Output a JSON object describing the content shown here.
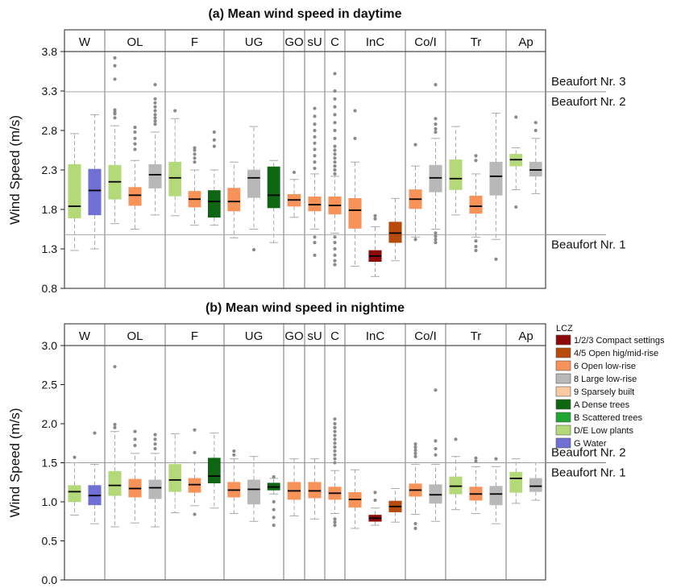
{
  "chart_data": [
    {
      "type": "boxplot",
      "title": "(a) Mean wind speed in daytime",
      "ylabel": "Wind Speed (m/s)",
      "ylim": [
        0.8,
        3.8
      ],
      "yticks": [
        "0.8",
        "1.3",
        "1.8",
        "2.3",
        "2.8",
        "3.3",
        "3.8"
      ],
      "grid": false,
      "groups": [
        "W",
        "OL",
        "F",
        "UG",
        "GO",
        "sU",
        "C",
        "InC",
        "Co/I",
        "Tr",
        "Ap"
      ],
      "reference_lines": [
        {
          "value": 1.48,
          "labels": [
            "Beaufort Nr. 1"
          ]
        },
        {
          "value": 3.29,
          "labels": [
            "Beaufort Nr. 3",
            "Beaufort Nr. 2"
          ]
        }
      ],
      "boxes": [
        {
          "group": "W",
          "lcz": "D/E",
          "min": 1.28,
          "q1": 1.69,
          "median": 1.84,
          "q3": 2.37,
          "max": 2.76,
          "outliers": []
        },
        {
          "group": "W",
          "lcz": "G",
          "min": 1.3,
          "q1": 1.73,
          "median": 2.04,
          "q3": 2.31,
          "max": 3.0,
          "outliers": []
        },
        {
          "group": "OL",
          "lcz": "D/E",
          "min": 1.62,
          "q1": 1.93,
          "median": 2.15,
          "q3": 2.36,
          "max": 2.86,
          "outliers": [
            3.06,
            3.03,
            3.01,
            2.96,
            3.45,
            3.62,
            3.72
          ]
        },
        {
          "group": "OL",
          "lcz": "6",
          "min": 1.55,
          "q1": 1.85,
          "median": 1.98,
          "q3": 2.08,
          "max": 2.42,
          "outliers": [
            2.56,
            2.63,
            2.7,
            2.78,
            2.84
          ]
        },
        {
          "group": "OL",
          "lcz": "8",
          "min": 1.73,
          "q1": 2.07,
          "median": 2.24,
          "q3": 2.37,
          "max": 2.78,
          "outliers": [
            2.88,
            2.92,
            2.96,
            3.0,
            3.05,
            3.1,
            3.15,
            3.2,
            3.38
          ]
        },
        {
          "group": "F",
          "lcz": "D/E",
          "min": 1.72,
          "q1": 1.97,
          "median": 2.2,
          "q3": 2.4,
          "max": 2.95,
          "outliers": [
            3.05
          ]
        },
        {
          "group": "F",
          "lcz": "6",
          "min": 1.6,
          "q1": 1.83,
          "median": 1.93,
          "q3": 2.03,
          "max": 2.3,
          "outliers": [
            2.4,
            2.45,
            2.5,
            2.55,
            2.58
          ]
        },
        {
          "group": "F",
          "lcz": "A",
          "min": 1.6,
          "q1": 1.7,
          "median": 1.9,
          "q3": 2.04,
          "max": 2.3,
          "outliers": [
            2.6,
            2.68,
            2.78
          ]
        },
        {
          "group": "UG",
          "lcz": "6",
          "min": 1.44,
          "q1": 1.78,
          "median": 1.9,
          "q3": 2.07,
          "max": 2.4,
          "outliers": []
        },
        {
          "group": "UG",
          "lcz": "8",
          "min": 1.55,
          "q1": 1.95,
          "median": 2.2,
          "q3": 2.3,
          "max": 2.85,
          "outliers": [
            1.29
          ]
        },
        {
          "group": "UG",
          "lcz": "A",
          "min": 1.38,
          "q1": 1.82,
          "median": 1.98,
          "q3": 2.34,
          "max": 2.42,
          "outliers": []
        },
        {
          "group": "GO",
          "lcz": "6",
          "min": 1.7,
          "q1": 1.84,
          "median": 1.92,
          "q3": 1.99,
          "max": 2.18,
          "outliers": [
            2.27
          ]
        },
        {
          "group": "sU",
          "lcz": "6",
          "min": 1.55,
          "q1": 1.78,
          "median": 1.86,
          "q3": 1.96,
          "max": 2.25,
          "outliers": [
            2.32,
            2.4,
            2.48,
            2.56,
            2.64,
            2.72,
            2.8,
            2.88,
            2.98,
            3.08,
            1.45,
            1.38,
            1.22
          ]
        },
        {
          "group": "C",
          "lcz": "6",
          "min": 1.5,
          "q1": 1.74,
          "median": 1.85,
          "q3": 1.96,
          "max": 2.22,
          "outliers": [
            2.25,
            2.3,
            2.35,
            2.4,
            2.45,
            2.5,
            2.55,
            2.6,
            2.7,
            2.8,
            2.9,
            3.0,
            3.1,
            3.2,
            3.3,
            3.52,
            1.45,
            1.38,
            1.3,
            1.22,
            1.15,
            1.1
          ]
        },
        {
          "group": "InC",
          "lcz": "6",
          "min": 1.08,
          "q1": 1.56,
          "median": 1.79,
          "q3": 1.94,
          "max": 2.4,
          "outliers": [
            2.7,
            3.05
          ]
        },
        {
          "group": "InC",
          "lcz": "1/2/3",
          "min": 0.95,
          "q1": 1.14,
          "median": 1.21,
          "q3": 1.28,
          "max": 1.58,
          "outliers": [
            1.68,
            1.72
          ]
        },
        {
          "group": "InC",
          "lcz": "4/5",
          "min": 1.15,
          "q1": 1.38,
          "median": 1.5,
          "q3": 1.64,
          "max": 1.94,
          "outliers": []
        },
        {
          "group": "Co/I",
          "lcz": "6",
          "min": 1.45,
          "q1": 1.81,
          "median": 1.93,
          "q3": 2.05,
          "max": 2.35,
          "outliers": [
            2.62,
            1.42
          ]
        },
        {
          "group": "Co/I",
          "lcz": "8",
          "min": 1.55,
          "q1": 2.02,
          "median": 2.2,
          "q3": 2.36,
          "max": 2.7,
          "outliers": [
            2.78,
            2.82,
            2.88,
            2.95,
            3.38,
            1.5,
            1.46,
            1.42,
            1.38
          ]
        },
        {
          "group": "Tr",
          "lcz": "D/E",
          "min": 1.73,
          "q1": 2.05,
          "median": 2.19,
          "q3": 2.43,
          "max": 2.85,
          "outliers": []
        },
        {
          "group": "Tr",
          "lcz": "6",
          "min": 1.45,
          "q1": 1.75,
          "median": 1.84,
          "q3": 1.97,
          "max": 2.25,
          "outliers": [
            2.42,
            2.48,
            1.4,
            1.33,
            1.28
          ]
        },
        {
          "group": "Tr",
          "lcz": "8",
          "min": 1.42,
          "q1": 1.98,
          "median": 2.22,
          "q3": 2.4,
          "max": 3.02,
          "outliers": [
            1.17
          ]
        },
        {
          "group": "Ap",
          "lcz": "D/E",
          "min": 2.05,
          "q1": 2.35,
          "median": 2.43,
          "q3": 2.5,
          "max": 2.58,
          "outliers": [
            2.97,
            1.83
          ]
        },
        {
          "group": "Ap",
          "lcz": "8",
          "min": 2.0,
          "q1": 2.22,
          "median": 2.3,
          "q3": 2.4,
          "max": 2.7,
          "outliers": [
            2.8,
            2.9
          ]
        }
      ]
    },
    {
      "type": "boxplot",
      "title": "(b) Mean wind speed in nightime",
      "ylabel": "Wind Speed (m/s)",
      "ylim": [
        0.0,
        3.0
      ],
      "yticks": [
        "0.0",
        "0.5",
        "1.0",
        "1.5",
        "2.0",
        "2.5",
        "3.0"
      ],
      "grid": false,
      "groups": [
        "W",
        "OL",
        "F",
        "UG",
        "GO",
        "sU",
        "C",
        "InC",
        "Co/I",
        "Tr",
        "Ap"
      ],
      "reference_lines": [
        {
          "value": 1.5,
          "labels": [
            "Beaufort Nr. 2",
            "Beaufort Nr. 1"
          ]
        }
      ],
      "boxes": [
        {
          "group": "W",
          "lcz": "D/E",
          "min": 0.83,
          "q1": 1.0,
          "median": 1.13,
          "q3": 1.21,
          "max": 1.5,
          "outliers": [
            1.57
          ]
        },
        {
          "group": "W",
          "lcz": "G",
          "min": 0.72,
          "q1": 0.96,
          "median": 1.08,
          "q3": 1.21,
          "max": 1.48,
          "outliers": [
            1.88
          ]
        },
        {
          "group": "OL",
          "lcz": "D/E",
          "min": 0.68,
          "q1": 1.08,
          "median": 1.21,
          "q3": 1.39,
          "max": 1.9,
          "outliers": [
            1.95,
            1.99,
            2.73
          ]
        },
        {
          "group": "OL",
          "lcz": "6",
          "min": 0.73,
          "q1": 1.06,
          "median": 1.17,
          "q3": 1.29,
          "max": 1.62,
          "outliers": [
            1.72,
            1.8,
            1.9
          ]
        },
        {
          "group": "OL",
          "lcz": "8",
          "min": 0.68,
          "q1": 1.04,
          "median": 1.18,
          "q3": 1.28,
          "max": 1.62,
          "outliers": [
            1.68,
            1.74,
            1.8,
            1.86
          ]
        },
        {
          "group": "F",
          "lcz": "D/E",
          "min": 0.86,
          "q1": 1.13,
          "median": 1.28,
          "q3": 1.48,
          "max": 1.87,
          "outliers": []
        },
        {
          "group": "F",
          "lcz": "6",
          "min": 0.95,
          "q1": 1.12,
          "median": 1.22,
          "q3": 1.3,
          "max": 1.5,
          "outliers": [
            1.63,
            1.92,
            0.84
          ]
        },
        {
          "group": "F",
          "lcz": "A",
          "min": 0.92,
          "q1": 1.24,
          "median": 1.33,
          "q3": 1.56,
          "max": 1.88,
          "outliers": []
        },
        {
          "group": "UG",
          "lcz": "6",
          "min": 0.85,
          "q1": 1.06,
          "median": 1.15,
          "q3": 1.25,
          "max": 1.55,
          "outliers": [
            1.6,
            1.65
          ]
        },
        {
          "group": "UG",
          "lcz": "8",
          "min": 0.75,
          "q1": 0.97,
          "median": 1.16,
          "q3": 1.28,
          "max": 1.58,
          "outliers": []
        },
        {
          "group": "UG",
          "lcz": "A",
          "min": 1.1,
          "q1": 1.15,
          "median": 1.19,
          "q3": 1.24,
          "max": 1.3,
          "outliers": [
            1.32,
            1.0,
            0.9,
            0.8,
            0.7
          ]
        },
        {
          "group": "GO",
          "lcz": "6",
          "min": 0.82,
          "q1": 1.03,
          "median": 1.14,
          "q3": 1.25,
          "max": 1.55,
          "outliers": []
        },
        {
          "group": "sU",
          "lcz": "6",
          "min": 0.78,
          "q1": 1.05,
          "median": 1.14,
          "q3": 1.25,
          "max": 1.55,
          "outliers": []
        },
        {
          "group": "C",
          "lcz": "6",
          "min": 0.85,
          "q1": 1.03,
          "median": 1.11,
          "q3": 1.19,
          "max": 1.4,
          "outliers": [
            1.5,
            1.55,
            1.6,
            1.65,
            1.7,
            1.75,
            1.8,
            1.85,
            1.9,
            1.95,
            2.0,
            2.06,
            0.78,
            0.74,
            0.7
          ]
        },
        {
          "group": "InC",
          "lcz": "6",
          "min": 0.66,
          "q1": 0.93,
          "median": 1.03,
          "q3": 1.12,
          "max": 1.41,
          "outliers": []
        },
        {
          "group": "InC",
          "lcz": "1/2/3",
          "min": 0.7,
          "q1": 0.75,
          "median": 0.79,
          "q3": 0.83,
          "max": 0.92,
          "outliers": [
            1.02,
            1.12
          ]
        },
        {
          "group": "InC",
          "lcz": "4/5",
          "min": 0.74,
          "q1": 0.87,
          "median": 0.94,
          "q3": 1.01,
          "max": 1.17,
          "outliers": []
        },
        {
          "group": "Co/I",
          "lcz": "6",
          "min": 0.84,
          "q1": 1.07,
          "median": 1.15,
          "q3": 1.23,
          "max": 1.48,
          "outliers": [
            1.58,
            1.62,
            1.66,
            1.7,
            1.74,
            0.72,
            0.66
          ]
        },
        {
          "group": "Co/I",
          "lcz": "8",
          "min": 0.75,
          "q1": 0.98,
          "median": 1.09,
          "q3": 1.22,
          "max": 1.48,
          "outliers": [
            1.6,
            1.68,
            1.78,
            2.43
          ]
        },
        {
          "group": "Tr",
          "lcz": "D/E",
          "min": 0.9,
          "q1": 1.1,
          "median": 1.2,
          "q3": 1.32,
          "max": 1.58,
          "outliers": [
            1.8
          ]
        },
        {
          "group": "Tr",
          "lcz": "6",
          "min": 0.85,
          "q1": 1.02,
          "median": 1.1,
          "q3": 1.19,
          "max": 1.45,
          "outliers": [
            1.52,
            1.56
          ]
        },
        {
          "group": "Tr",
          "lcz": "8",
          "min": 0.72,
          "q1": 0.96,
          "median": 1.1,
          "q3": 1.2,
          "max": 1.45,
          "outliers": [
            1.55
          ]
        },
        {
          "group": "Ap",
          "lcz": "D/E",
          "min": 0.98,
          "q1": 1.12,
          "median": 1.3,
          "q3": 1.38,
          "max": 1.55,
          "outliers": []
        },
        {
          "group": "Ap",
          "lcz": "8",
          "min": 1.02,
          "q1": 1.13,
          "median": 1.2,
          "q3": 1.3,
          "max": 1.5,
          "outliers": []
        }
      ]
    }
  ],
  "legend": {
    "title": "LCZ",
    "placement": "right",
    "items": [
      {
        "key": "1/2/3",
        "label": "1/2/3 Compact settings",
        "color": "#8e0a0a"
      },
      {
        "key": "4/5",
        "label": "4/5 Open hig/mid-rise",
        "color": "#b84a0c"
      },
      {
        "key": "6",
        "label": "6 Open low-rise",
        "color": "#f79258"
      },
      {
        "key": "8",
        "label": "8 Large low-rise",
        "color": "#b8b8b8"
      },
      {
        "key": "9",
        "label": "9 Sparsely built",
        "color": "#fbc9a4"
      },
      {
        "key": "A",
        "label": "A Dense trees",
        "color": "#0e6512"
      },
      {
        "key": "B",
        "label": "B Scattered trees",
        "color": "#20a630"
      },
      {
        "key": "D/E",
        "label": "D/E Low plants",
        "color": "#b4d978"
      },
      {
        "key": "G",
        "label": "G Water",
        "color": "#6f6fd4"
      }
    ]
  }
}
